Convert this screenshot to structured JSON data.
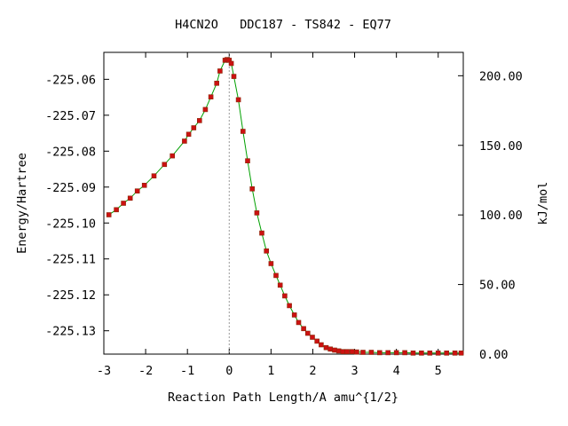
{
  "chart_data": {
    "type": "line",
    "title": "H4CN2O   DDC187 - TS842 - EQ77",
    "xlabel": "Reaction Path Length/A amu^{1/2}",
    "ylabel": "Energy/Hartree",
    "y2label": "kJ/mol",
    "xlim": [
      -3,
      5.6
    ],
    "ylim": [
      -225.1365,
      -225.0525
    ],
    "y2lim": [
      0,
      216.8
    ],
    "x_ticks": [
      "-3",
      "-2",
      "-1",
      "0",
      "1",
      "2",
      "3",
      "4",
      "5"
    ],
    "y_ticks": [
      "-225.06",
      "-225.07",
      "-225.08",
      "-225.09",
      "-225.10",
      "-225.11",
      "-225.12",
      "-225.13"
    ],
    "y2_ticks": [
      "0.00",
      "50.00",
      "100.00",
      "150.00",
      "200.00"
    ],
    "ts_marker_x": 0,
    "grid": false,
    "series": [
      {
        "color": "#00a000",
        "marker_color": "#cc1111",
        "x": [
          -2.88,
          -2.7,
          -2.53,
          -2.37,
          -2.2,
          -2.03,
          -1.8,
          -1.55,
          -1.36,
          -1.07,
          -0.97,
          -0.85,
          -0.71,
          -0.57,
          -0.44,
          -0.3,
          -0.22,
          -0.1,
          -0.05,
          0.0,
          0.05,
          0.11,
          0.22,
          0.33,
          0.44,
          0.55,
          0.66,
          0.78,
          0.89,
          1.0,
          1.12,
          1.22,
          1.33,
          1.44,
          1.56,
          1.66,
          1.78,
          1.88,
          1.99,
          2.1,
          2.2,
          2.32,
          2.42,
          2.52,
          2.62,
          2.72,
          2.82,
          2.94,
          3.05,
          3.2,
          3.4,
          3.6,
          3.8,
          4.0,
          4.2,
          4.4,
          4.6,
          4.8,
          5.0,
          5.2,
          5.4,
          5.55
        ],
        "y": [
          -225.0977,
          -225.0963,
          -225.0945,
          -225.0931,
          -225.0911,
          -225.0895,
          -225.0869,
          -225.0837,
          -225.0813,
          -225.0772,
          -225.0753,
          -225.0735,
          -225.0715,
          -225.0684,
          -225.0649,
          -225.0611,
          -225.0577,
          -225.0547,
          -225.0545,
          -225.0547,
          -225.0556,
          -225.0592,
          -225.0657,
          -225.0745,
          -225.0827,
          -225.0905,
          -225.0972,
          -225.1028,
          -225.1078,
          -225.1113,
          -225.1146,
          -225.1173,
          -225.1203,
          -225.123,
          -225.1256,
          -225.1277,
          -225.1294,
          -225.1307,
          -225.1318,
          -225.1329,
          -225.1339,
          -225.1347,
          -225.1351,
          -225.1354,
          -225.1356,
          -225.1358,
          -225.1358,
          -225.1358,
          -225.1359,
          -225.136,
          -225.136,
          -225.1361,
          -225.1361,
          -225.1361,
          -225.1361,
          -225.1362,
          -225.1362,
          -225.1362,
          -225.1362,
          -225.1362,
          -225.1362,
          -225.1362
        ]
      }
    ]
  }
}
